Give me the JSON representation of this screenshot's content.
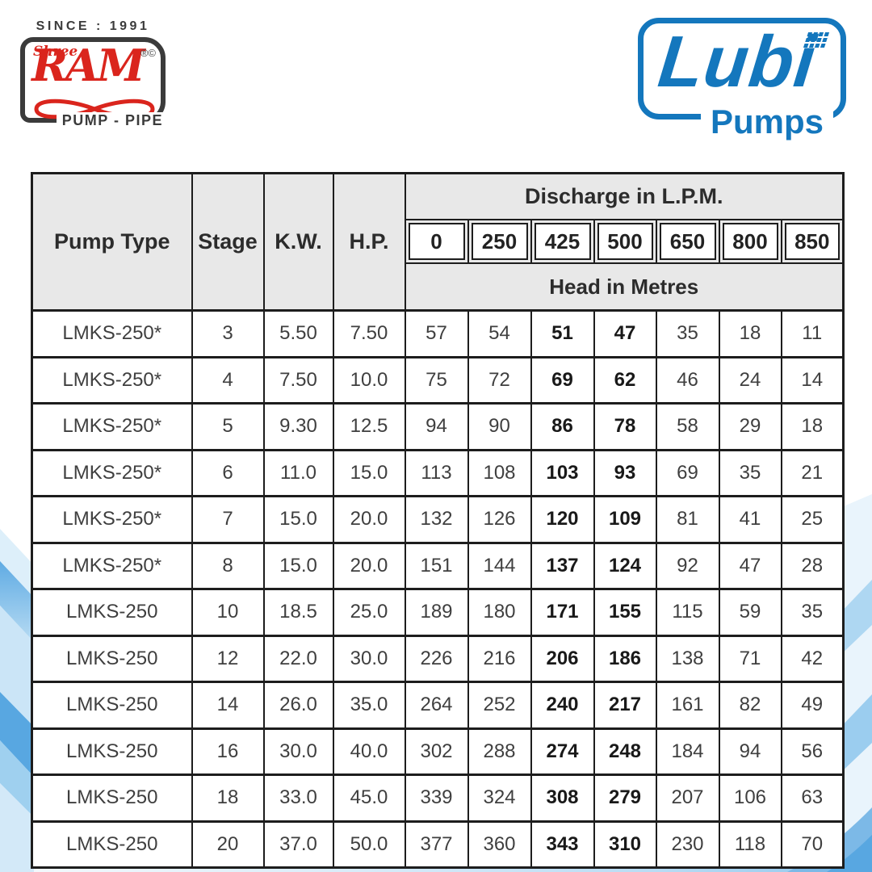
{
  "theme": {
    "lubi_blue": "#1477bd",
    "ram_red": "#da251d",
    "logo_dark_gray": "#3b3b3b",
    "header_gray": "#e8e8e8",
    "table_border": "#1d1d1d",
    "wave_blue_strong": "#58a7e1",
    "wave_blue_light": "#d9ecf9"
  },
  "header": {
    "ram_logo": {
      "since": "SINCE : 1991",
      "shree": "Shree",
      "name": "RAM",
      "reg_marks": "®©",
      "tagline": "PUMP - PIPE"
    },
    "lubi_logo": {
      "name": "Lubi",
      "sub": "Pumps"
    }
  },
  "table": {
    "columns": {
      "pump_type": "Pump Type",
      "stage": "Stage",
      "kw": "K.W.",
      "hp": "H.P."
    },
    "discharge_title": "Discharge in L.P.M.",
    "discharge_values": [
      "0",
      "250",
      "425",
      "500",
      "650",
      "800",
      "850"
    ],
    "head_title": "Head in Metres",
    "bold_value_columns": [
      2,
      3
    ],
    "rows": [
      {
        "pump_type": "LMKS-250*",
        "stage": "3",
        "kw": "5.50",
        "hp": "7.50",
        "heads": [
          "57",
          "54",
          "51",
          "47",
          "35",
          "18",
          "11"
        ]
      },
      {
        "pump_type": "LMKS-250*",
        "stage": "4",
        "kw": "7.50",
        "hp": "10.0",
        "heads": [
          "75",
          "72",
          "69",
          "62",
          "46",
          "24",
          "14"
        ]
      },
      {
        "pump_type": "LMKS-250*",
        "stage": "5",
        "kw": "9.30",
        "hp": "12.5",
        "heads": [
          "94",
          "90",
          "86",
          "78",
          "58",
          "29",
          "18"
        ]
      },
      {
        "pump_type": "LMKS-250*",
        "stage": "6",
        "kw": "11.0",
        "hp": "15.0",
        "heads": [
          "113",
          "108",
          "103",
          "93",
          "69",
          "35",
          "21"
        ]
      },
      {
        "pump_type": "LMKS-250*",
        "stage": "7",
        "kw": "15.0",
        "hp": "20.0",
        "heads": [
          "132",
          "126",
          "120",
          "109",
          "81",
          "41",
          "25"
        ]
      },
      {
        "pump_type": "LMKS-250*",
        "stage": "8",
        "kw": "15.0",
        "hp": "20.0",
        "heads": [
          "151",
          "144",
          "137",
          "124",
          "92",
          "47",
          "28"
        ]
      },
      {
        "pump_type": "LMKS-250",
        "stage": "10",
        "kw": "18.5",
        "hp": "25.0",
        "heads": [
          "189",
          "180",
          "171",
          "155",
          "115",
          "59",
          "35"
        ]
      },
      {
        "pump_type": "LMKS-250",
        "stage": "12",
        "kw": "22.0",
        "hp": "30.0",
        "heads": [
          "226",
          "216",
          "206",
          "186",
          "138",
          "71",
          "42"
        ]
      },
      {
        "pump_type": "LMKS-250",
        "stage": "14",
        "kw": "26.0",
        "hp": "35.0",
        "heads": [
          "264",
          "252",
          "240",
          "217",
          "161",
          "82",
          "49"
        ]
      },
      {
        "pump_type": "LMKS-250",
        "stage": "16",
        "kw": "30.0",
        "hp": "40.0",
        "heads": [
          "302",
          "288",
          "274",
          "248",
          "184",
          "94",
          "56"
        ]
      },
      {
        "pump_type": "LMKS-250",
        "stage": "18",
        "kw": "33.0",
        "hp": "45.0",
        "heads": [
          "339",
          "324",
          "308",
          "279",
          "207",
          "106",
          "63"
        ]
      },
      {
        "pump_type": "LMKS-250",
        "stage": "20",
        "kw": "37.0",
        "hp": "50.0",
        "heads": [
          "377",
          "360",
          "343",
          "310",
          "230",
          "118",
          "70"
        ]
      }
    ]
  }
}
